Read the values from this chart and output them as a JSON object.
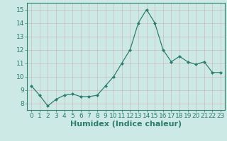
{
  "x": [
    0,
    1,
    2,
    3,
    4,
    5,
    6,
    7,
    8,
    9,
    10,
    11,
    12,
    13,
    14,
    15,
    16,
    17,
    18,
    19,
    20,
    21,
    22,
    23
  ],
  "y": [
    9.3,
    8.6,
    7.8,
    8.3,
    8.6,
    8.7,
    8.5,
    8.5,
    8.6,
    9.3,
    10.0,
    11.0,
    12.0,
    14.0,
    15.0,
    14.0,
    12.0,
    11.1,
    11.5,
    11.1,
    10.9,
    11.1,
    10.3,
    10.3
  ],
  "xlabel": "Humidex (Indice chaleur)",
  "ylim": [
    7.5,
    15.5
  ],
  "xlim": [
    -0.5,
    23.5
  ],
  "yticks": [
    8,
    9,
    10,
    11,
    12,
    13,
    14,
    15
  ],
  "xticks": [
    0,
    1,
    2,
    3,
    4,
    5,
    6,
    7,
    8,
    9,
    10,
    11,
    12,
    13,
    14,
    15,
    16,
    17,
    18,
    19,
    20,
    21,
    22,
    23
  ],
  "line_color": "#2e7d6e",
  "marker_color": "#2e7d6e",
  "bg_color": "#cce9e5",
  "grid_color": "#b0d8d2",
  "tick_label_color": "#2e7d6e",
  "xlabel_color": "#2e7d6e",
  "xlabel_fontsize": 8,
  "tick_fontsize": 6.5,
  "spine_color": "#2e7d6e"
}
